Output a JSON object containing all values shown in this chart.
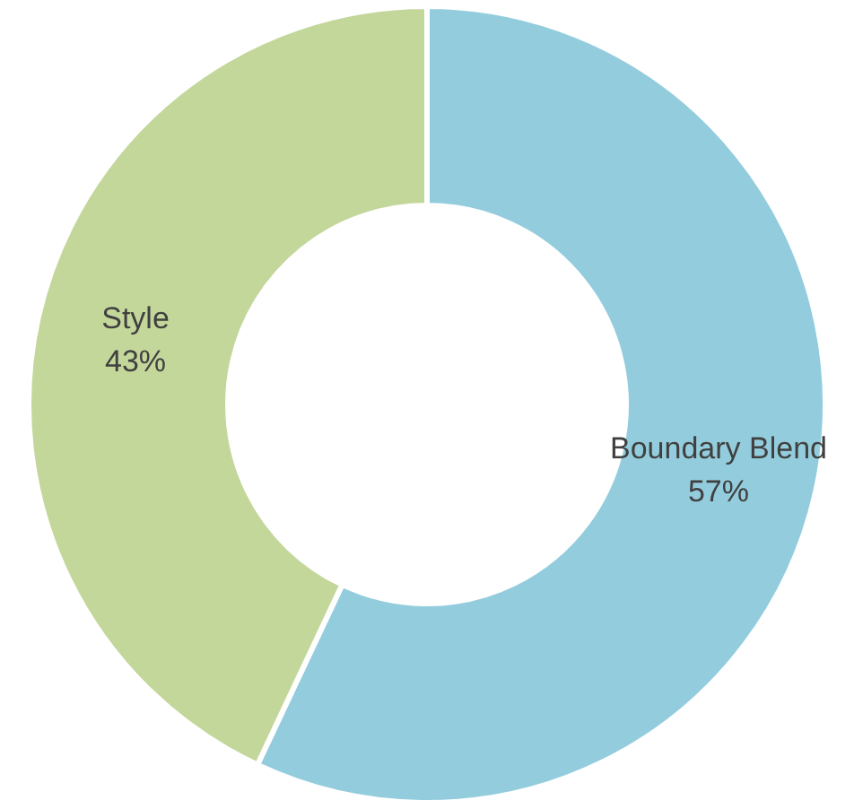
{
  "chart_data": {
    "type": "donut",
    "categories": [
      "Boundary Blend",
      "Style"
    ],
    "values": [
      57,
      43
    ],
    "colors": [
      "#93cddd",
      "#c4d79b"
    ],
    "value_labels": [
      "57%",
      "43%"
    ],
    "legend": false
  }
}
